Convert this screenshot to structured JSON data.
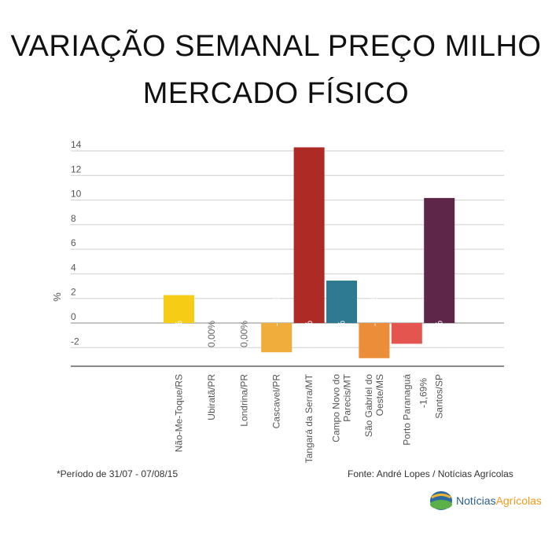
{
  "title_line1": "VARIAÇÃO SEMANAL PREÇO MILHO",
  "title_line2": "MERCADO FÍSICO",
  "chart_data": {
    "type": "bar",
    "ylabel": "%",
    "ylim": [
      -4,
      14
    ],
    "yticks": [
      14,
      12,
      10,
      8,
      6,
      4,
      2,
      0,
      -2
    ],
    "grid": true,
    "categories": [
      "Não-Me-Toque/RS",
      "Ubiratã/PR",
      "Londrina/PR",
      "Cascavel/PR",
      "Tangará da Serra/MT",
      "Campo Novo do Parecis/MT",
      "São Gabriel do Oeste/MS",
      "Porto Paranaguá",
      "Santos/SP"
    ],
    "category_lines": [
      [
        "Não-Me-Toque/RS"
      ],
      [
        "Ubiratã/PR"
      ],
      [
        "Londrina/PR"
      ],
      [
        "Cascavel/PR"
      ],
      [
        "Tangará da Serra/MT"
      ],
      [
        "Campo Novo do",
        "Parecis/MT"
      ],
      [
        "São Gabriel do",
        "Oeste/MS"
      ],
      [
        "Porto Paranaguá"
      ],
      [
        "Santos/SP"
      ]
    ],
    "values": [
      2.27,
      0.0,
      0.0,
      -2.38,
      14.29,
      3.45,
      -2.86,
      -1.69,
      10.17
    ],
    "value_labels": [
      "2,27%",
      "0,00%",
      "0,00%",
      "-2,38%",
      "14,29%",
      "3,45%",
      "-2,86%",
      "-1,69%",
      "10,17%"
    ],
    "colors": [
      "#f7cc15",
      "#cccccc",
      "#cccccc",
      "#f0ad3c",
      "#ad2a25",
      "#2e7a93",
      "#ec8d3a",
      "#e5554f",
      "#5e2749"
    ]
  },
  "footnote_left": "*Período de 31/07 - 07/08/15",
  "footnote_right": "Fonte: André Lopes / Notícias Agrícolas",
  "logo": {
    "part1": "Notícias",
    "part2": "Agrícolas"
  }
}
